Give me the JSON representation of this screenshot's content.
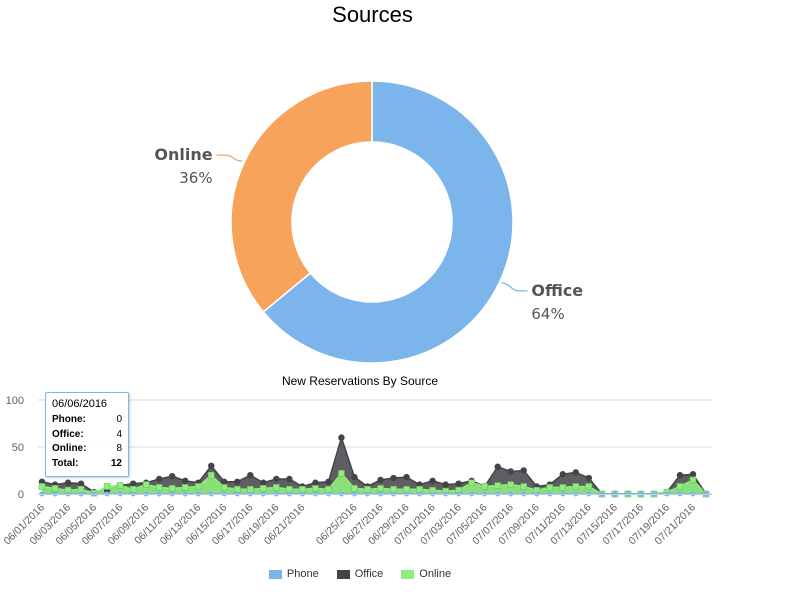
{
  "chart_data": [
    {
      "type": "pie",
      "variant": "donut",
      "title": "Sources",
      "slices": [
        {
          "name": "Office",
          "value": 64,
          "label": "64%",
          "color": "#7cb5ec"
        },
        {
          "name": "Online",
          "value": 36,
          "label": "36%",
          "color": "#f7a35c"
        }
      ]
    },
    {
      "type": "area",
      "title": "New Reservations By Source",
      "stacked": false,
      "ylim": [
        0,
        100
      ],
      "yticks": [
        "0",
        "50",
        "100"
      ],
      "grid": true,
      "x": [
        "06/01/2016",
        "06/02/2016",
        "06/03/2016",
        "06/04/2016",
        "06/05/2016",
        "06/06/2016",
        "06/07/2016",
        "06/08/2016",
        "06/09/2016",
        "06/10/2016",
        "06/11/2016",
        "06/12/2016",
        "06/13/2016",
        "06/14/2016",
        "06/15/2016",
        "06/16/2016",
        "06/17/2016",
        "06/18/2016",
        "06/19/2016",
        "06/20/2016",
        "06/21/2016",
        "06/22/2016",
        "06/23/2016",
        "06/24/2016",
        "06/25/2016",
        "06/26/2016",
        "06/27/2016",
        "06/28/2016",
        "06/29/2016",
        "06/30/2016",
        "07/01/2016",
        "07/02/2016",
        "07/03/2016",
        "07/04/2016",
        "07/05/2016",
        "07/06/2016",
        "07/07/2016",
        "07/08/2016",
        "07/09/2016",
        "07/10/2016",
        "07/11/2016",
        "07/12/2016",
        "07/13/2016",
        "07/14/2016",
        "07/15/2016",
        "07/16/2016",
        "07/17/2016",
        "07/18/2016",
        "07/19/2016",
        "07/20/2016",
        "07/21/2016",
        "07/22/2016"
      ],
      "xtick_labels": [
        "06/01/2016",
        "06/03/2016",
        "06/05/2016",
        "06/07/2016",
        "06/09/2016",
        "06/11/2016",
        "06/13/2016",
        "06/15/2016",
        "06/17/2016",
        "06/19/2016",
        "06/21/2016",
        "06/25/2016",
        "06/27/2016",
        "06/29/2016",
        "07/01/2016",
        "07/03/2016",
        "07/05/2016",
        "07/07/2016",
        "07/09/2016",
        "07/11/2016",
        "07/13/2016",
        "07/15/2016",
        "07/17/2016",
        "07/19/2016",
        "07/21/2016"
      ],
      "series": [
        {
          "name": "Phone",
          "color": "#7cb5ec",
          "values": [
            0,
            0,
            0,
            0,
            0,
            0,
            0,
            0,
            0,
            0,
            0,
            0,
            0,
            0,
            0,
            0,
            0,
            0,
            0,
            0,
            0,
            0,
            0,
            0,
            0,
            0,
            0,
            0,
            0,
            0,
            0,
            0,
            0,
            0,
            0,
            0,
            0,
            0,
            0,
            0,
            0,
            0,
            0,
            0,
            0,
            0,
            0,
            0,
            0,
            0,
            0,
            0
          ]
        },
        {
          "name": "Office",
          "color": "#434348",
          "values": [
            13,
            10,
            12,
            11,
            2,
            4,
            9,
            11,
            12,
            16,
            19,
            14,
            12,
            30,
            13,
            13,
            20,
            12,
            16,
            16,
            8,
            12,
            13,
            60,
            18,
            8,
            15,
            17,
            18,
            10,
            14,
            10,
            11,
            14,
            8,
            29,
            24,
            25,
            8,
            10,
            21,
            23,
            17,
            0,
            0,
            0,
            0,
            0,
            2,
            20,
            21,
            0
          ]
        },
        {
          "name": "Online",
          "color": "#90ed7d",
          "values": [
            8,
            6,
            4,
            5,
            1,
            8,
            9,
            5,
            10,
            7,
            6,
            7,
            8,
            20,
            7,
            5,
            5,
            6,
            7,
            5,
            5,
            6,
            5,
            22,
            6,
            5,
            6,
            5,
            5,
            5,
            4,
            3,
            4,
            12,
            8,
            9,
            10,
            8,
            4,
            7,
            7,
            8,
            8,
            0,
            0,
            0,
            0,
            0,
            2,
            8,
            15,
            0
          ]
        }
      ],
      "tooltip": {
        "date": "06/06/2016",
        "rows": [
          {
            "label": "Phone:",
            "value": "0"
          },
          {
            "label": "Office:",
            "value": "4"
          },
          {
            "label": "Online:",
            "value": "8"
          },
          {
            "label": "Total:",
            "value": "12"
          }
        ]
      }
    }
  ]
}
